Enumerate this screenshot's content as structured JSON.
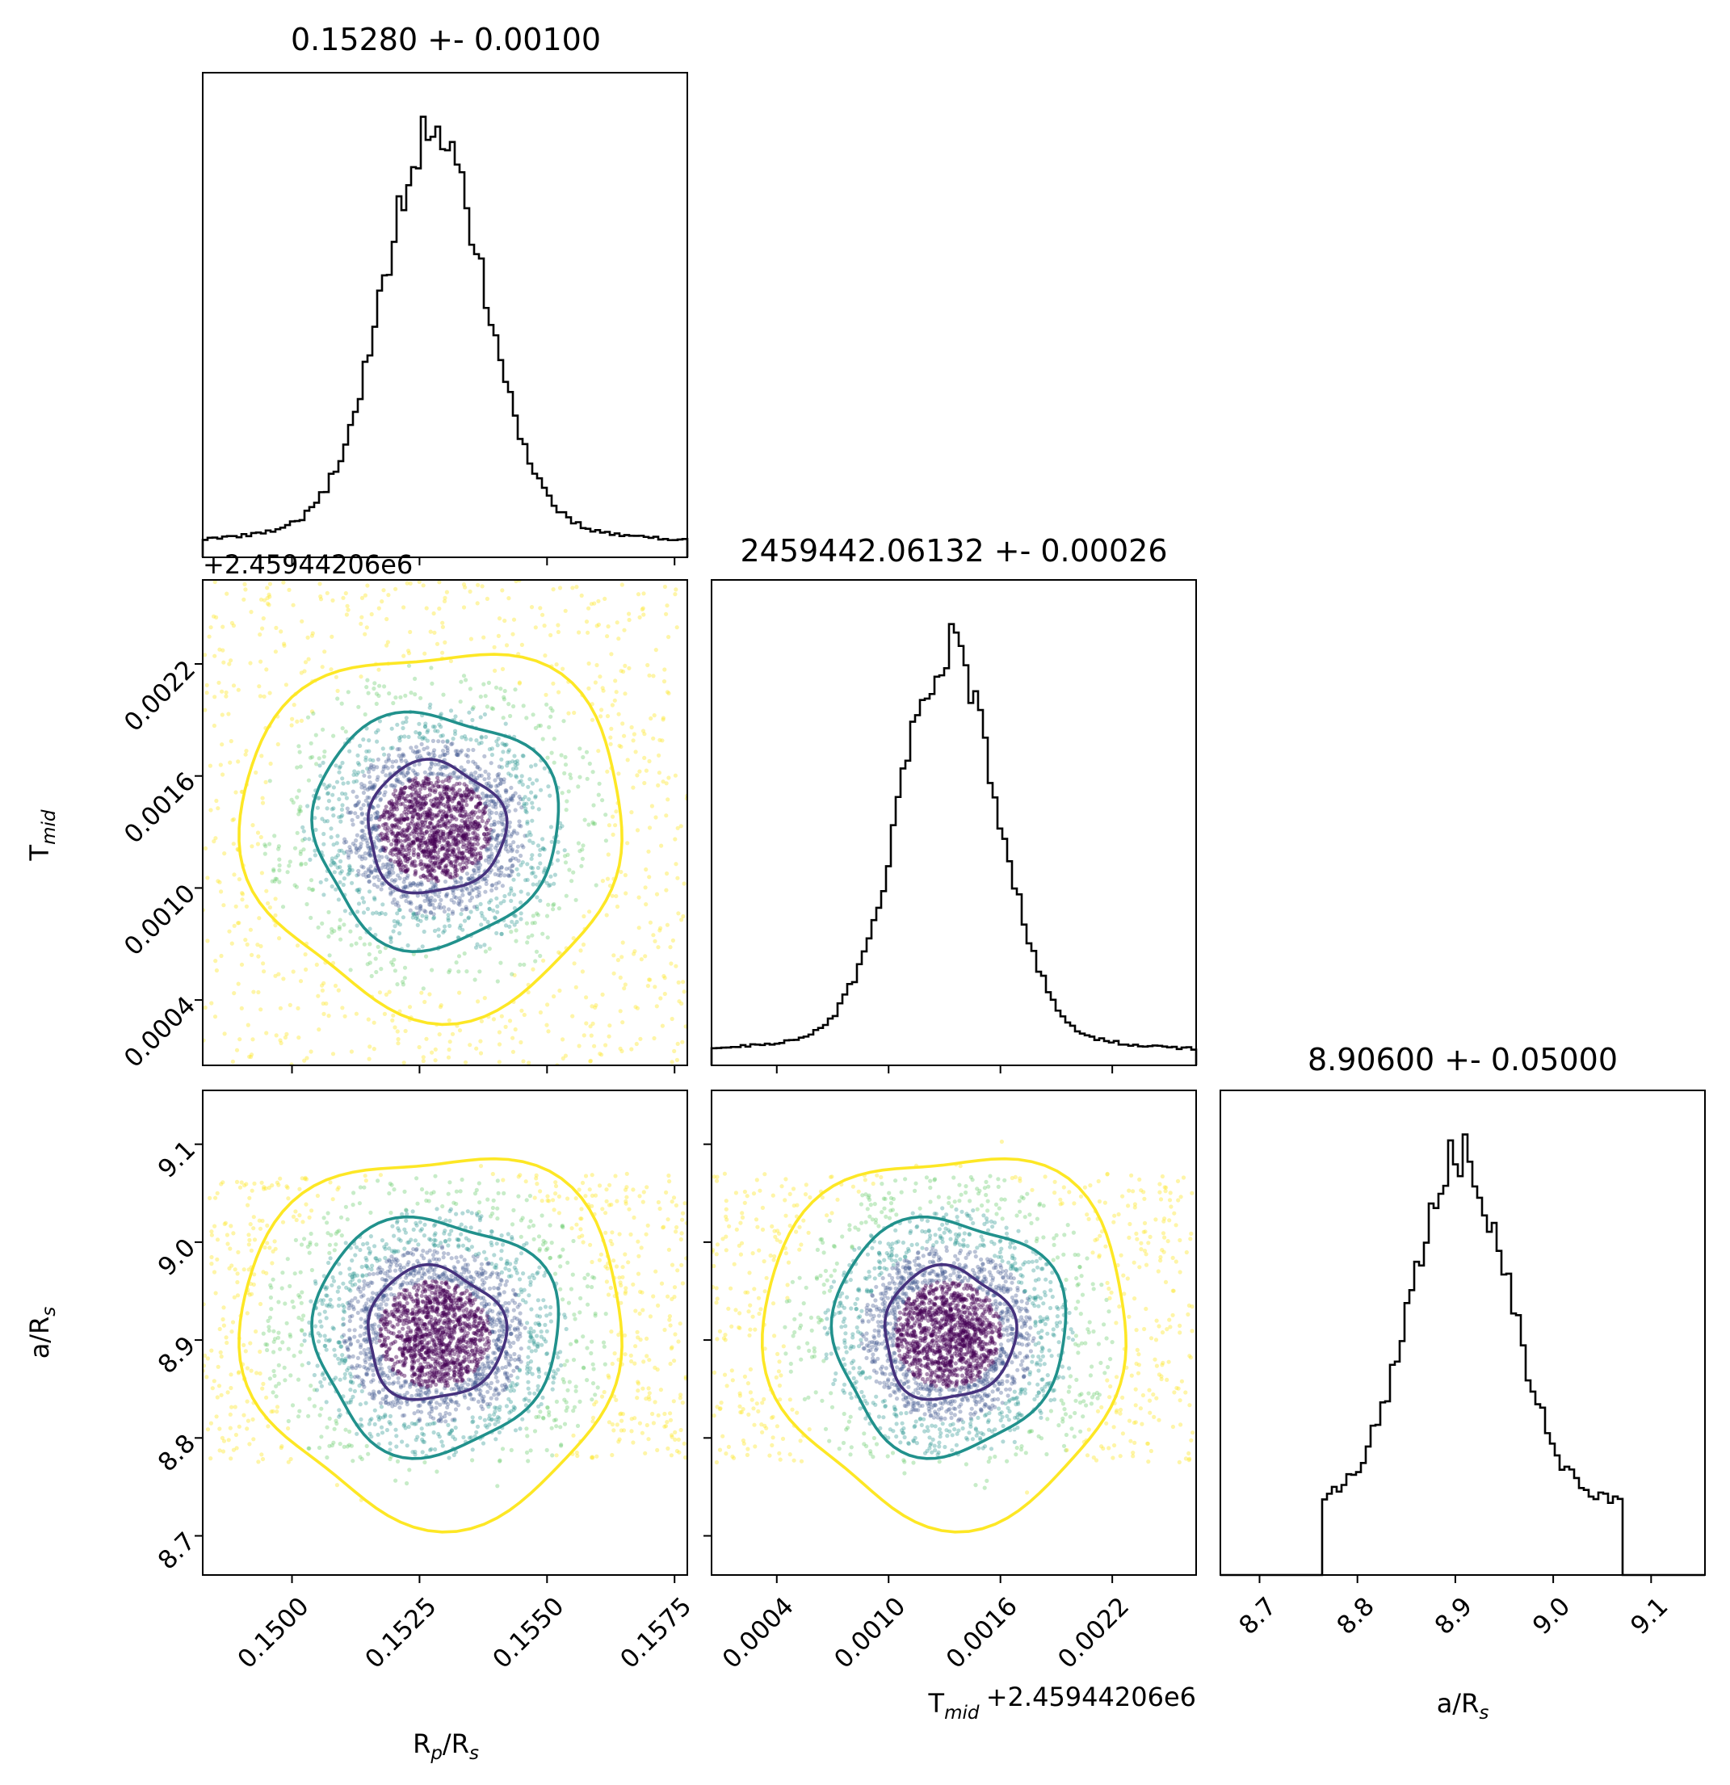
{
  "chart_data": {
    "type": "corner",
    "parameters": [
      {
        "name": "Rp/Rs",
        "label_main": "R",
        "label_sub1": "p",
        "label_mid": "/R",
        "label_sub2": "s",
        "title": "0.15280 +- 0.00100",
        "mean": 0.1528,
        "sigma": 0.001,
        "range": [
          0.14825,
          0.15775
        ],
        "ticks": [
          "0.1500",
          "0.1525",
          "0.1550",
          "0.1575"
        ],
        "tick_values": [
          0.15,
          0.1525,
          0.155,
          0.1575
        ]
      },
      {
        "name": "Tmid",
        "label_main": "T",
        "label_sub1": "mid",
        "title": "2459442.06132 +- 0.00026",
        "offset_label": "+2.45944206e6",
        "mean": 0.00132,
        "sigma": 0.00026,
        "range": [
          5e-05,
          0.00265
        ],
        "ticks": [
          "0.0004",
          "0.0010",
          "0.0016",
          "0.0022"
        ],
        "tick_values": [
          0.0004,
          0.001,
          0.0016,
          0.0022
        ]
      },
      {
        "name": "a/Rs",
        "label_main": "a/R",
        "label_sub1": "s",
        "title": "8.90600 +- 0.05000",
        "mean": 8.906,
        "sigma": 0.05,
        "range": [
          8.66,
          9.155
        ],
        "ticks": [
          "8.7",
          "8.8",
          "8.9",
          "9.0",
          "9.1"
        ],
        "tick_values": [
          8.7,
          8.8,
          8.9,
          9.0,
          9.1
        ]
      }
    ],
    "colors": {
      "histogram": "#000000",
      "contour_inner": "#46327e",
      "contour_middle": "#21918c",
      "contour_outer": "#fde725",
      "points": [
        "#fde725",
        "#5ec962",
        "#21918c",
        "#3b528b",
        "#440154"
      ]
    }
  }
}
